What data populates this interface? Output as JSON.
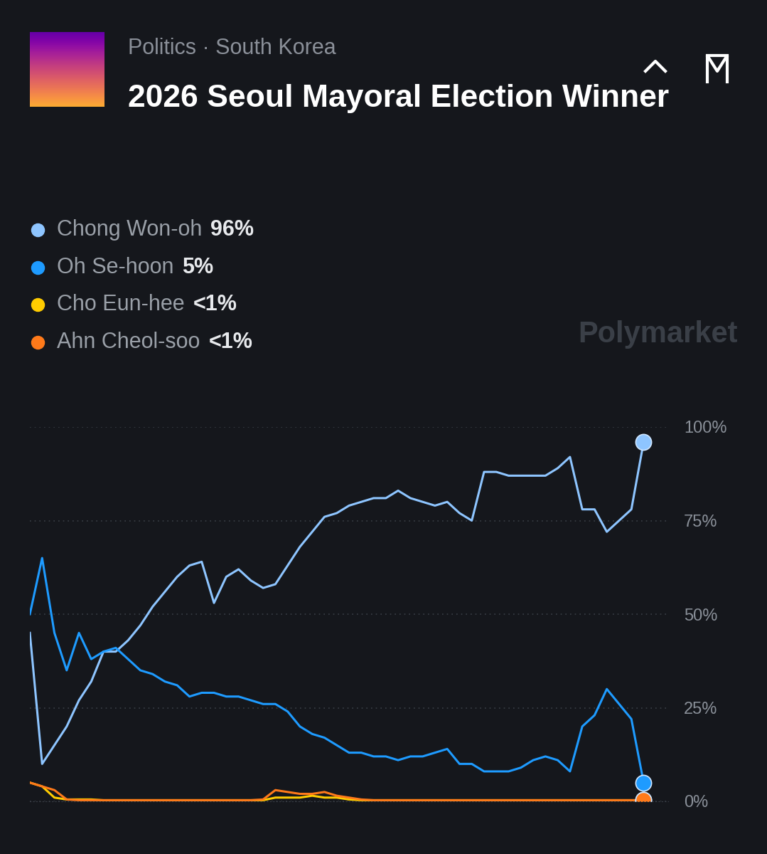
{
  "header": {
    "breadcrumb": "Politics · South Korea",
    "watermark": "Polymarket"
  },
  "chart_data": {
    "type": "line",
    "title": "2026 Seoul Mayoral Election Winner",
    "x": [
      0,
      2,
      4,
      6,
      8,
      10,
      12,
      14,
      16,
      18,
      20,
      22,
      24,
      26,
      28,
      30,
      32,
      34,
      36,
      38,
      40,
      42,
      44,
      46,
      48,
      50,
      52,
      54,
      56,
      58,
      60,
      62,
      64,
      66,
      68,
      70,
      72,
      74,
      76,
      78,
      80,
      82,
      84,
      86,
      88,
      90,
      92,
      94,
      96,
      98,
      100
    ],
    "xlim": [
      0,
      104
    ],
    "xticks": [],
    "ylim": [
      0,
      100
    ],
    "yticks": [
      {
        "value": 0,
        "label": "0%"
      },
      {
        "value": 25,
        "label": "25%"
      },
      {
        "value": 50,
        "label": "50%"
      },
      {
        "value": 75,
        "label": "75%"
      },
      {
        "value": 100,
        "label": "100%"
      }
    ],
    "grid": true,
    "tick_labels": "y",
    "series": [
      {
        "name": "Chong Won-oh",
        "color": "#8ec5ff",
        "current": "96%",
        "values": [
          45,
          10,
          15,
          20,
          27,
          32,
          40,
          40,
          43,
          47,
          52,
          56,
          60,
          63,
          64,
          53,
          60,
          62,
          59,
          57,
          58,
          63,
          68,
          72,
          76,
          77,
          79,
          80,
          81,
          81,
          83,
          81,
          80,
          79,
          80,
          77,
          75,
          88,
          88,
          87,
          87,
          87,
          87,
          89,
          92,
          78,
          78,
          72,
          75,
          78,
          96
        ]
      },
      {
        "name": "Oh Se-hoon",
        "color": "#1e9bff",
        "current": "5%",
        "values": [
          50,
          65,
          45,
          35,
          45,
          38,
          40,
          41,
          38,
          35,
          34,
          32,
          31,
          28,
          29,
          29,
          28,
          28,
          27,
          26,
          26,
          24,
          20,
          18,
          17,
          15,
          13,
          13,
          12,
          12,
          11,
          12,
          12,
          13,
          14,
          10,
          10,
          8,
          8,
          8,
          9,
          11,
          12,
          11,
          8,
          20,
          23,
          30,
          26,
          22,
          5
        ]
      },
      {
        "name": "Cho Eun-hee",
        "color": "#ffcc00",
        "current": "<1%",
        "values": [
          5,
          4,
          1,
          0.5,
          0.5,
          0.5,
          0.3,
          0.3,
          0.3,
          0.3,
          0.3,
          0.3,
          0.3,
          0.3,
          0.3,
          0.3,
          0.3,
          0.3,
          0.3,
          0.3,
          1,
          1,
          1,
          1.5,
          1,
          1,
          0.5,
          0.3,
          0.3,
          0.3,
          0.3,
          0.3,
          0.3,
          0.3,
          0.3,
          0.3,
          0.3,
          0.3,
          0.3,
          0.3,
          0.3,
          0.3,
          0.3,
          0.3,
          0.3,
          0.3,
          0.3,
          0.3,
          0.3,
          0.3,
          0.3
        ]
      },
      {
        "name": "Ahn Cheol-soo",
        "color": "#ff7a1a",
        "current": "<1%",
        "values": [
          5,
          4,
          3,
          0.5,
          0.3,
          0.3,
          0.3,
          0.3,
          0.3,
          0.3,
          0.3,
          0.3,
          0.3,
          0.3,
          0.3,
          0.3,
          0.3,
          0.3,
          0.3,
          0.5,
          3,
          2.5,
          2,
          2,
          2.5,
          1.5,
          1,
          0.5,
          0.3,
          0.3,
          0.3,
          0.3,
          0.3,
          0.3,
          0.3,
          0.3,
          0.3,
          0.3,
          0.3,
          0.3,
          0.3,
          0.3,
          0.3,
          0.3,
          0.3,
          0.3,
          0.3,
          0.3,
          0.3,
          0.3,
          0.3
        ]
      }
    ]
  }
}
